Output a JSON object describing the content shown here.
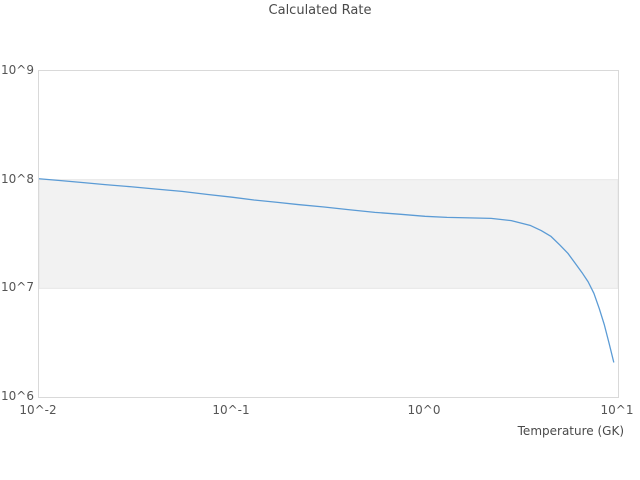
{
  "colors": {
    "line": "#5b9bd5",
    "band_fill": "#f2f2f2",
    "band_edge": "#e7e7e7",
    "plot_border": "#d9d9d9",
    "text": "#555555",
    "title_text": "#4a4a4a"
  },
  "chart_data": {
    "type": "line",
    "title": "Calculated Rate",
    "xlabel": "Temperature (GK)",
    "ylabel": "",
    "x_scale": "log",
    "y_scale": "log",
    "xlim": [
      0.01,
      10
    ],
    "ylim": [
      1000000,
      1000000000
    ],
    "grid": "off",
    "legend": "none",
    "x_ticks": [
      {
        "label": "10^-2",
        "value": 0.01
      },
      {
        "label": "10^-1",
        "value": 0.1
      },
      {
        "label": "10^0",
        "value": 1
      },
      {
        "label": "10^1",
        "value": 10
      }
    ],
    "y_ticks": [
      {
        "label": "10^6",
        "value": 1000000
      },
      {
        "label": "10^7",
        "value": 10000000
      },
      {
        "label": "10^8",
        "value": 100000000
      },
      {
        "label": "10^9",
        "value": 1000000000
      }
    ],
    "shaded_band": {
      "y_from": 10000000,
      "y_to": 100000000
    },
    "series": [
      {
        "name": "Calculated Rate",
        "x": [
          0.01,
          0.013,
          0.017,
          0.022,
          0.03,
          0.04,
          0.055,
          0.075,
          0.1,
          0.13,
          0.17,
          0.22,
          0.3,
          0.4,
          0.55,
          0.75,
          1.0,
          1.3,
          1.7,
          2.2,
          2.8,
          3.5,
          4.0,
          4.5,
          5.0,
          5.5,
          6.0,
          6.5,
          7.0,
          7.5,
          8.0,
          8.5,
          9.0,
          9.5
        ],
        "y": [
          102000000.0,
          98000000.0,
          94000000.0,
          90000000.0,
          86000000.0,
          82000000.0,
          78000000.0,
          73000000.0,
          69000000.0,
          65000000.0,
          62000000.0,
          59000000.0,
          56000000.0,
          53000000.0,
          50000000.0,
          48000000.0,
          46000000.0,
          45000000.0,
          44500000.0,
          44000000.0,
          42000000.0,
          38000000.0,
          34000000.0,
          30000000.0,
          25000000.0,
          21000000.0,
          17000000.0,
          14000000.0,
          11500000.0,
          9000000.0,
          6500000.0,
          4600000.0,
          3100000.0,
          2100000.0
        ]
      }
    ]
  }
}
